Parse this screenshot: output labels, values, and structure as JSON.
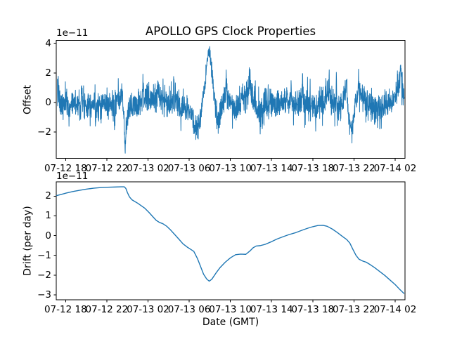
{
  "figure": {
    "title": "APOLLO GPS Clock Properties",
    "background": "#ffffff",
    "line_color": "#1f77b4",
    "text_color": "#000000"
  },
  "chart_data": [
    {
      "type": "line",
      "name": "offset-vs-time",
      "ylabel": "Offset",
      "offset_text": "1e−11",
      "x_unit": "hours after 07-12 00 GMT",
      "xlim": [
        17.09,
        50.96
      ],
      "ylim": [
        -3.77,
        4.19
      ],
      "grid": false,
      "xticks": [
        {
          "value": 18,
          "label": "07-12 18"
        },
        {
          "value": 22,
          "label": "07-12 22"
        },
        {
          "value": 26,
          "label": "07-13 02"
        },
        {
          "value": 30,
          "label": "07-13 06"
        },
        {
          "value": 34,
          "label": "07-13 10"
        },
        {
          "value": 38,
          "label": "07-13 14"
        },
        {
          "value": 42,
          "label": "07-13 18"
        },
        {
          "value": 46,
          "label": "07-13 22"
        },
        {
          "value": 50,
          "label": "07-14 02"
        }
      ],
      "ytick_values": [
        4,
        2,
        0,
        -2
      ],
      "ytick_labels": [
        "4",
        "2",
        "0",
        "−2"
      ],
      "series_mean_anchors": [
        [
          17.15,
          0.3
        ],
        [
          17.45,
          -0.2
        ],
        [
          18.0,
          -0.1
        ],
        [
          18.8,
          0.0
        ],
        [
          19.6,
          -0.1
        ],
        [
          20.4,
          0.0
        ],
        [
          21.2,
          -0.1
        ],
        [
          22.0,
          -0.05
        ],
        [
          22.6,
          -0.2
        ],
        [
          23.1,
          0.0
        ],
        [
          23.45,
          0.35
        ],
        [
          23.65,
          -0.8
        ],
        [
          23.78,
          -2.95
        ],
        [
          23.92,
          -1.5
        ],
        [
          24.1,
          -0.5
        ],
        [
          24.5,
          -0.2
        ],
        [
          25.0,
          0.0
        ],
        [
          25.5,
          0.45
        ],
        [
          26.0,
          0.1
        ],
        [
          26.5,
          0.25
        ],
        [
          27.0,
          0.55
        ],
        [
          27.5,
          0.2
        ],
        [
          28.0,
          -0.15
        ],
        [
          28.5,
          0.1
        ],
        [
          29.0,
          -0.1
        ],
        [
          29.5,
          -0.1
        ],
        [
          30.0,
          -0.3
        ],
        [
          30.35,
          -1.3
        ],
        [
          30.65,
          -1.75
        ],
        [
          30.95,
          -1.45
        ],
        [
          31.25,
          -0.3
        ],
        [
          31.55,
          1.2
        ],
        [
          31.75,
          2.7
        ],
        [
          31.92,
          3.55
        ],
        [
          32.1,
          2.8
        ],
        [
          32.35,
          1.0
        ],
        [
          32.6,
          -1.0
        ],
        [
          32.75,
          -1.35
        ],
        [
          32.95,
          -0.7
        ],
        [
          33.2,
          -0.2
        ],
        [
          33.55,
          0.55
        ],
        [
          33.85,
          0.3
        ],
        [
          34.3,
          -0.25
        ],
        [
          34.8,
          -0.1
        ],
        [
          35.3,
          0.2
        ],
        [
          35.75,
          0.65
        ],
        [
          36.2,
          0.5
        ],
        [
          36.65,
          -0.5
        ],
        [
          36.95,
          -0.65
        ],
        [
          37.3,
          -0.2
        ],
        [
          37.8,
          0.05
        ],
        [
          38.4,
          -0.15
        ],
        [
          39.0,
          0.05
        ],
        [
          39.6,
          0.15
        ],
        [
          40.2,
          -0.1
        ],
        [
          40.8,
          0.1
        ],
        [
          41.4,
          0.0
        ],
        [
          42.0,
          -0.3
        ],
        [
          42.5,
          -0.35
        ],
        [
          43.0,
          0.15
        ],
        [
          43.5,
          0.45
        ],
        [
          44.0,
          0.0
        ],
        [
          44.5,
          -0.25
        ],
        [
          44.9,
          0.1
        ],
        [
          45.25,
          0.9
        ],
        [
          45.5,
          -0.9
        ],
        [
          45.72,
          -1.95
        ],
        [
          45.95,
          -1.1
        ],
        [
          46.25,
          0.5
        ],
        [
          46.6,
          0.85
        ],
        [
          46.95,
          0.4
        ],
        [
          47.3,
          -0.1
        ],
        [
          47.8,
          -0.25
        ],
        [
          48.3,
          -0.15
        ],
        [
          48.8,
          -0.35
        ],
        [
          49.3,
          -0.15
        ],
        [
          49.7,
          0.1
        ],
        [
          50.2,
          0.9
        ],
        [
          50.5,
          1.4
        ],
        [
          50.75,
          0.9
        ],
        [
          50.9,
          0.4
        ]
      ],
      "noise_sigma_anchors": [
        [
          17.15,
          0.5
        ],
        [
          23.3,
          0.5
        ],
        [
          23.6,
          0.35
        ],
        [
          24.1,
          0.4
        ],
        [
          24.6,
          0.5
        ],
        [
          29.9,
          0.5
        ],
        [
          30.5,
          0.4
        ],
        [
          31.3,
          0.33
        ],
        [
          31.9,
          0.28
        ],
        [
          32.3,
          0.35
        ],
        [
          33.0,
          0.5
        ],
        [
          35.0,
          0.52
        ],
        [
          44.0,
          0.52
        ],
        [
          45.4,
          0.38
        ],
        [
          46.0,
          0.45
        ],
        [
          47.0,
          0.5
        ],
        [
          50.9,
          0.5
        ]
      ],
      "spikes": [
        [
          17.3,
          1.6,
          0.07
        ],
        [
          18.35,
          -1.3,
          0.07
        ],
        [
          19.55,
          1.5,
          0.06
        ],
        [
          20.9,
          -1.4,
          0.06
        ],
        [
          22.75,
          -1.6,
          0.07
        ],
        [
          23.5,
          0.9,
          0.05
        ],
        [
          23.78,
          -0.45,
          0.05
        ],
        [
          25.55,
          0.9,
          0.06
        ],
        [
          26.95,
          0.8,
          0.06
        ],
        [
          28.5,
          1.9,
          0.06
        ],
        [
          29.75,
          -1.1,
          0.06
        ],
        [
          33.6,
          1.3,
          0.07
        ],
        [
          35.9,
          1.35,
          0.08
        ],
        [
          36.9,
          -0.8,
          0.06
        ],
        [
          38.2,
          1.1,
          0.05
        ],
        [
          39.9,
          1.6,
          0.06
        ],
        [
          41.0,
          2.0,
          0.06
        ],
        [
          42.3,
          -1.2,
          0.06
        ],
        [
          43.6,
          1.5,
          0.06
        ],
        [
          44.3,
          1.8,
          0.05
        ],
        [
          45.3,
          1.4,
          0.05
        ],
        [
          46.45,
          1.0,
          0.06
        ],
        [
          48.0,
          -1.1,
          0.05
        ],
        [
          50.55,
          0.7,
          0.06
        ]
      ],
      "t_start": 17.2,
      "t_end": 50.88,
      "n_points": 2000,
      "seed": 7,
      "clamp": [
        -3.42,
        3.78
      ]
    },
    {
      "type": "line",
      "name": "drift-vs-time",
      "ylabel": "Drift (per day)",
      "xlabel": "Date (GMT)",
      "offset_text": "1e−11",
      "x_unit": "hours after 07-12 00 GMT",
      "xlim": [
        17.09,
        50.96
      ],
      "ylim": [
        -3.26,
        2.715
      ],
      "grid": false,
      "xticks": [
        {
          "value": 18,
          "label": "07-12 18"
        },
        {
          "value": 22,
          "label": "07-12 22"
        },
        {
          "value": 26,
          "label": "07-13 02"
        },
        {
          "value": 30,
          "label": "07-13 06"
        },
        {
          "value": 34,
          "label": "07-13 10"
        },
        {
          "value": 38,
          "label": "07-13 14"
        },
        {
          "value": 42,
          "label": "07-13 18"
        },
        {
          "value": 46,
          "label": "07-13 22"
        },
        {
          "value": 50,
          "label": "07-14 02"
        }
      ],
      "ytick_values": [
        2,
        1,
        0,
        -1,
        -2,
        -3
      ],
      "ytick_labels": [
        "2",
        "1",
        "0",
        "−1",
        "−2",
        "−3"
      ],
      "points": [
        [
          17.1,
          2.02
        ],
        [
          17.6,
          2.09
        ],
        [
          18.1,
          2.16
        ],
        [
          18.7,
          2.23
        ],
        [
          19.3,
          2.29
        ],
        [
          20.0,
          2.35
        ],
        [
          20.7,
          2.4
        ],
        [
          21.4,
          2.43
        ],
        [
          22.1,
          2.45
        ],
        [
          22.8,
          2.46
        ],
        [
          23.4,
          2.47
        ],
        [
          23.7,
          2.47
        ],
        [
          23.85,
          2.39
        ],
        [
          24.0,
          2.18
        ],
        [
          24.2,
          1.96
        ],
        [
          24.45,
          1.81
        ],
        [
          24.7,
          1.73
        ],
        [
          25.0,
          1.64
        ],
        [
          25.3,
          1.53
        ],
        [
          25.7,
          1.38
        ],
        [
          26.1,
          1.17
        ],
        [
          26.5,
          0.94
        ],
        [
          26.8,
          0.77
        ],
        [
          27.1,
          0.67
        ],
        [
          27.45,
          0.6
        ],
        [
          27.8,
          0.48
        ],
        [
          28.2,
          0.28
        ],
        [
          28.6,
          0.05
        ],
        [
          29.0,
          -0.18
        ],
        [
          29.4,
          -0.42
        ],
        [
          29.8,
          -0.58
        ],
        [
          30.1,
          -0.68
        ],
        [
          30.45,
          -0.8
        ],
        [
          30.8,
          -1.16
        ],
        [
          31.1,
          -1.56
        ],
        [
          31.4,
          -1.96
        ],
        [
          31.7,
          -2.2
        ],
        [
          31.95,
          -2.31
        ],
        [
          32.2,
          -2.21
        ],
        [
          32.6,
          -1.9
        ],
        [
          33.0,
          -1.62
        ],
        [
          33.5,
          -1.35
        ],
        [
          34.0,
          -1.13
        ],
        [
          34.5,
          -0.97
        ],
        [
          35.0,
          -0.94
        ],
        [
          35.5,
          -0.95
        ],
        [
          35.9,
          -0.78
        ],
        [
          36.2,
          -0.62
        ],
        [
          36.5,
          -0.53
        ],
        [
          36.9,
          -0.51
        ],
        [
          37.4,
          -0.44
        ],
        [
          37.9,
          -0.33
        ],
        [
          38.5,
          -0.18
        ],
        [
          39.1,
          -0.06
        ],
        [
          39.7,
          0.05
        ],
        [
          40.3,
          0.14
        ],
        [
          40.9,
          0.26
        ],
        [
          41.5,
          0.37
        ],
        [
          42.0,
          0.45
        ],
        [
          42.5,
          0.51
        ],
        [
          43.0,
          0.52
        ],
        [
          43.4,
          0.47
        ],
        [
          43.9,
          0.33
        ],
        [
          44.4,
          0.15
        ],
        [
          44.9,
          -0.05
        ],
        [
          45.3,
          -0.2
        ],
        [
          45.6,
          -0.38
        ],
        [
          45.9,
          -0.7
        ],
        [
          46.2,
          -1.0
        ],
        [
          46.5,
          -1.2
        ],
        [
          46.9,
          -1.3
        ],
        [
          47.2,
          -1.35
        ],
        [
          47.6,
          -1.48
        ],
        [
          48.0,
          -1.62
        ],
        [
          48.5,
          -1.82
        ],
        [
          49.0,
          -2.02
        ],
        [
          49.5,
          -2.25
        ],
        [
          50.0,
          -2.48
        ],
        [
          50.4,
          -2.7
        ],
        [
          50.88,
          -2.94
        ]
      ]
    }
  ]
}
